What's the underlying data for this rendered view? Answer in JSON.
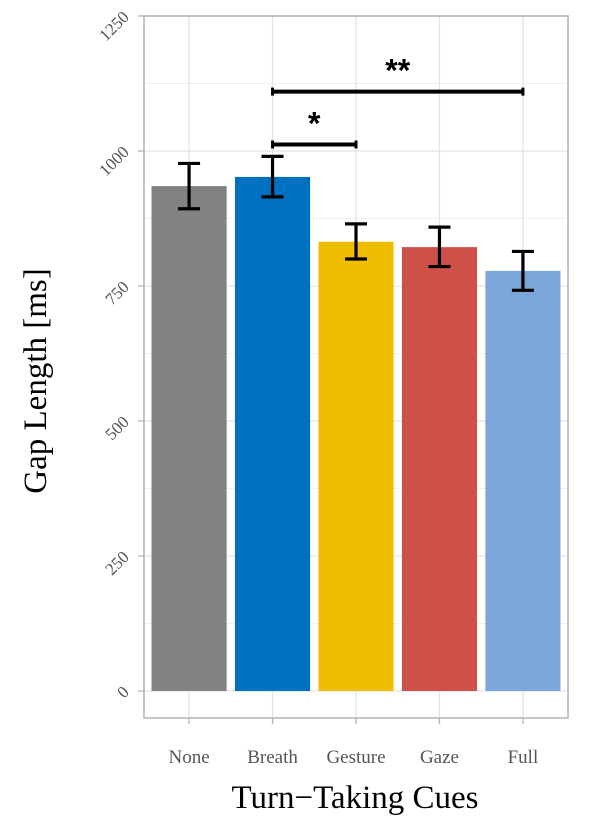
{
  "chart_data": {
    "type": "bar",
    "title": "",
    "xlabel": "Turn−Taking Cues",
    "ylabel": "Gap Length [ms]",
    "categories": [
      "None",
      "Breath",
      "Gesture",
      "Gaze",
      "Full"
    ],
    "values": [
      935,
      952,
      832,
      822,
      778
    ],
    "error": [
      [
        893,
        977
      ],
      [
        915,
        990
      ],
      [
        800,
        865
      ],
      [
        786,
        859
      ],
      [
        742,
        814
      ]
    ],
    "colors": [
      "#828282",
      "#0070C0",
      "#F0BE00",
      "#CD5148",
      "#7BA6DB"
    ],
    "ylim": [
      -50,
      1250
    ],
    "yticks": [
      0,
      250,
      500,
      750,
      1000,
      1250
    ],
    "grid": true,
    "significance": [
      {
        "from": 1,
        "to": 2,
        "label": "*",
        "y": 1012
      },
      {
        "from": 1,
        "to": 4,
        "label": "**",
        "y": 1110
      }
    ]
  }
}
